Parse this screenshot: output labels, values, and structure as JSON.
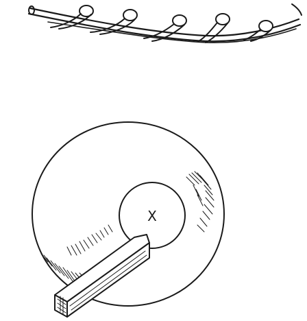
{
  "labels": {
    "center_mark": "X"
  },
  "colors": {
    "ink": "#1a1a1a",
    "paper": "#ffffff"
  }
}
